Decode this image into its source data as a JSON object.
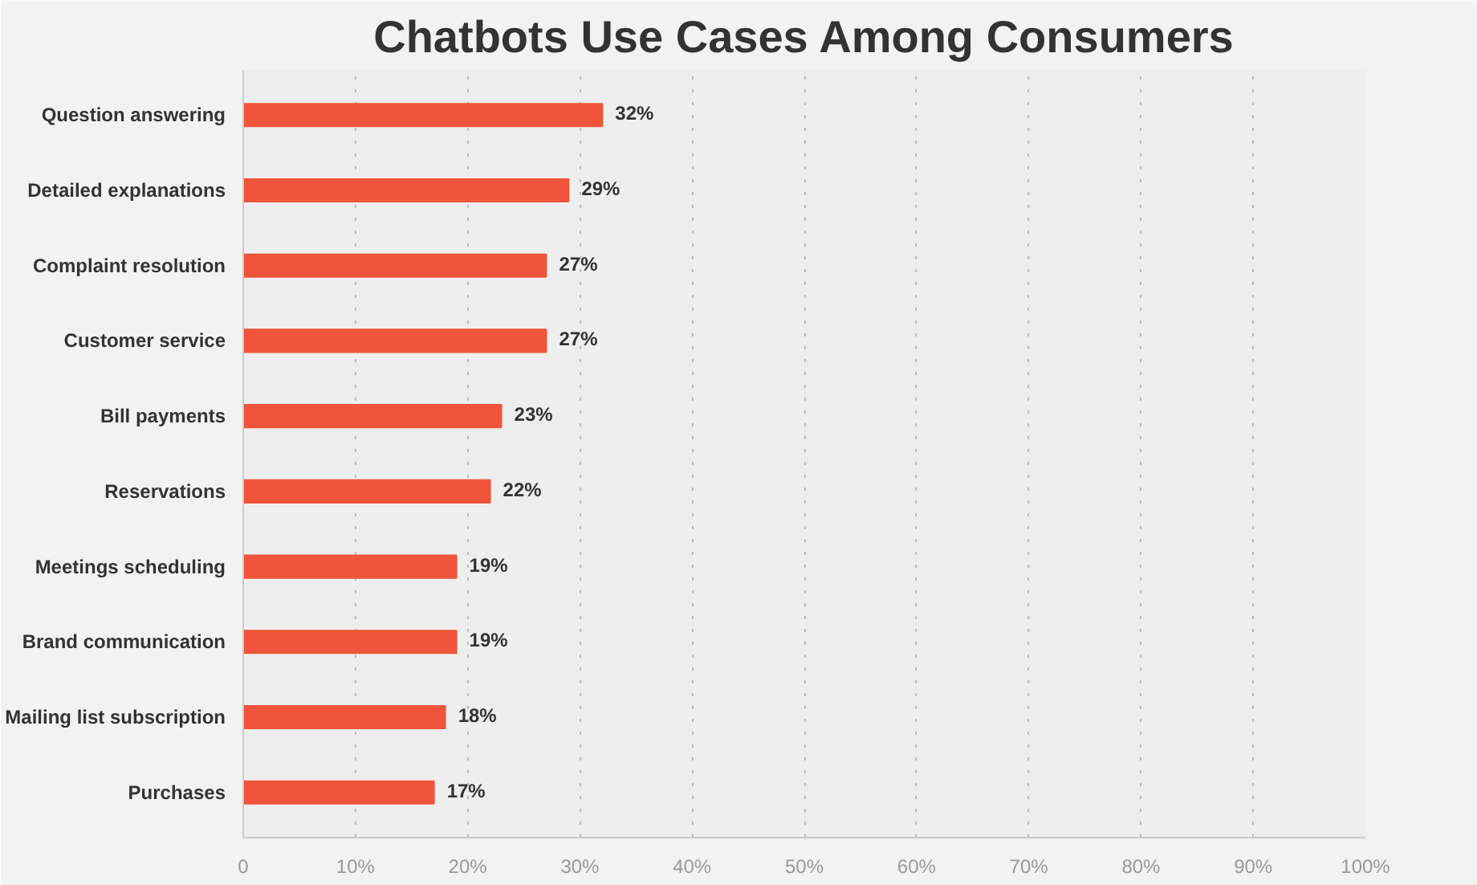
{
  "chart_data": {
    "type": "bar",
    "orientation": "horizontal",
    "title": "Chatbots Use Cases Among Consumers",
    "categories": [
      "Question answering",
      "Detailed explanations",
      "Complaint resolution",
      "Customer service",
      "Bill payments",
      "Reservations",
      "Meetings scheduling",
      "Brand communication",
      "Mailing list subscription",
      "Purchases"
    ],
    "values": [
      32,
      29,
      27,
      27,
      23,
      22,
      19,
      19,
      18,
      17
    ],
    "value_labels": [
      "32%",
      "29%",
      "27%",
      "27%",
      "23%",
      "22%",
      "19%",
      "19%",
      "18%",
      "17%"
    ],
    "color": "#f0553b",
    "xlim": [
      0,
      100
    ],
    "xticks": [
      0,
      {
        "value": 10,
        "label": "10%"
      },
      {
        "value": 20,
        "label": "20%"
      },
      {
        "value": 30,
        "label": "30%"
      },
      {
        "value": 40,
        "label": "40%"
      },
      {
        "value": 50,
        "label": "50%"
      },
      {
        "value": 60,
        "label": "60%"
      },
      {
        "value": 70,
        "label": "70%"
      },
      {
        "value": 80,
        "label": "80%"
      },
      {
        "value": 90,
        "label": "90%"
      },
      {
        "value": 100,
        "label": "100%"
      }
    ],
    "grid": "x"
  }
}
